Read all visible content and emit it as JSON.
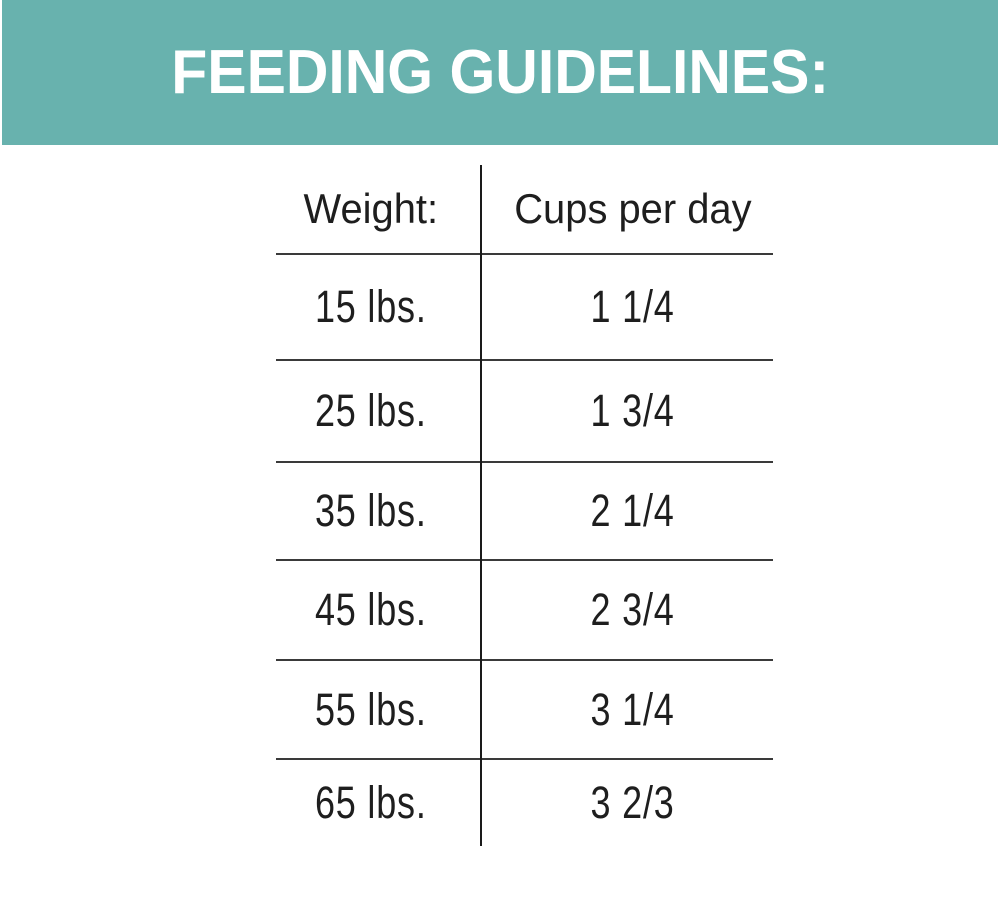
{
  "banner": {
    "title": "FEEDING GUIDELINES:",
    "background_color": "#68b2ae",
    "text_color": "#ffffff"
  },
  "table": {
    "columns": [
      {
        "label": "Weight:"
      },
      {
        "label": "Cups per day"
      }
    ],
    "rows": [
      {
        "weight": "15 lbs.",
        "cups": "1 1/4"
      },
      {
        "weight": "25 lbs.",
        "cups": "1 3/4"
      },
      {
        "weight": "35 lbs.",
        "cups": "2 1/4"
      },
      {
        "weight": "45 lbs.",
        "cups": "2 3/4"
      },
      {
        "weight": "55 lbs.",
        "cups": "3 1/4"
      },
      {
        "weight": "65 lbs.",
        "cups": "3 2/3"
      }
    ],
    "text_color": "#1e1e1e",
    "row_line_color": "#3a3a3a",
    "column_divider_color": "#1a1a1a"
  }
}
